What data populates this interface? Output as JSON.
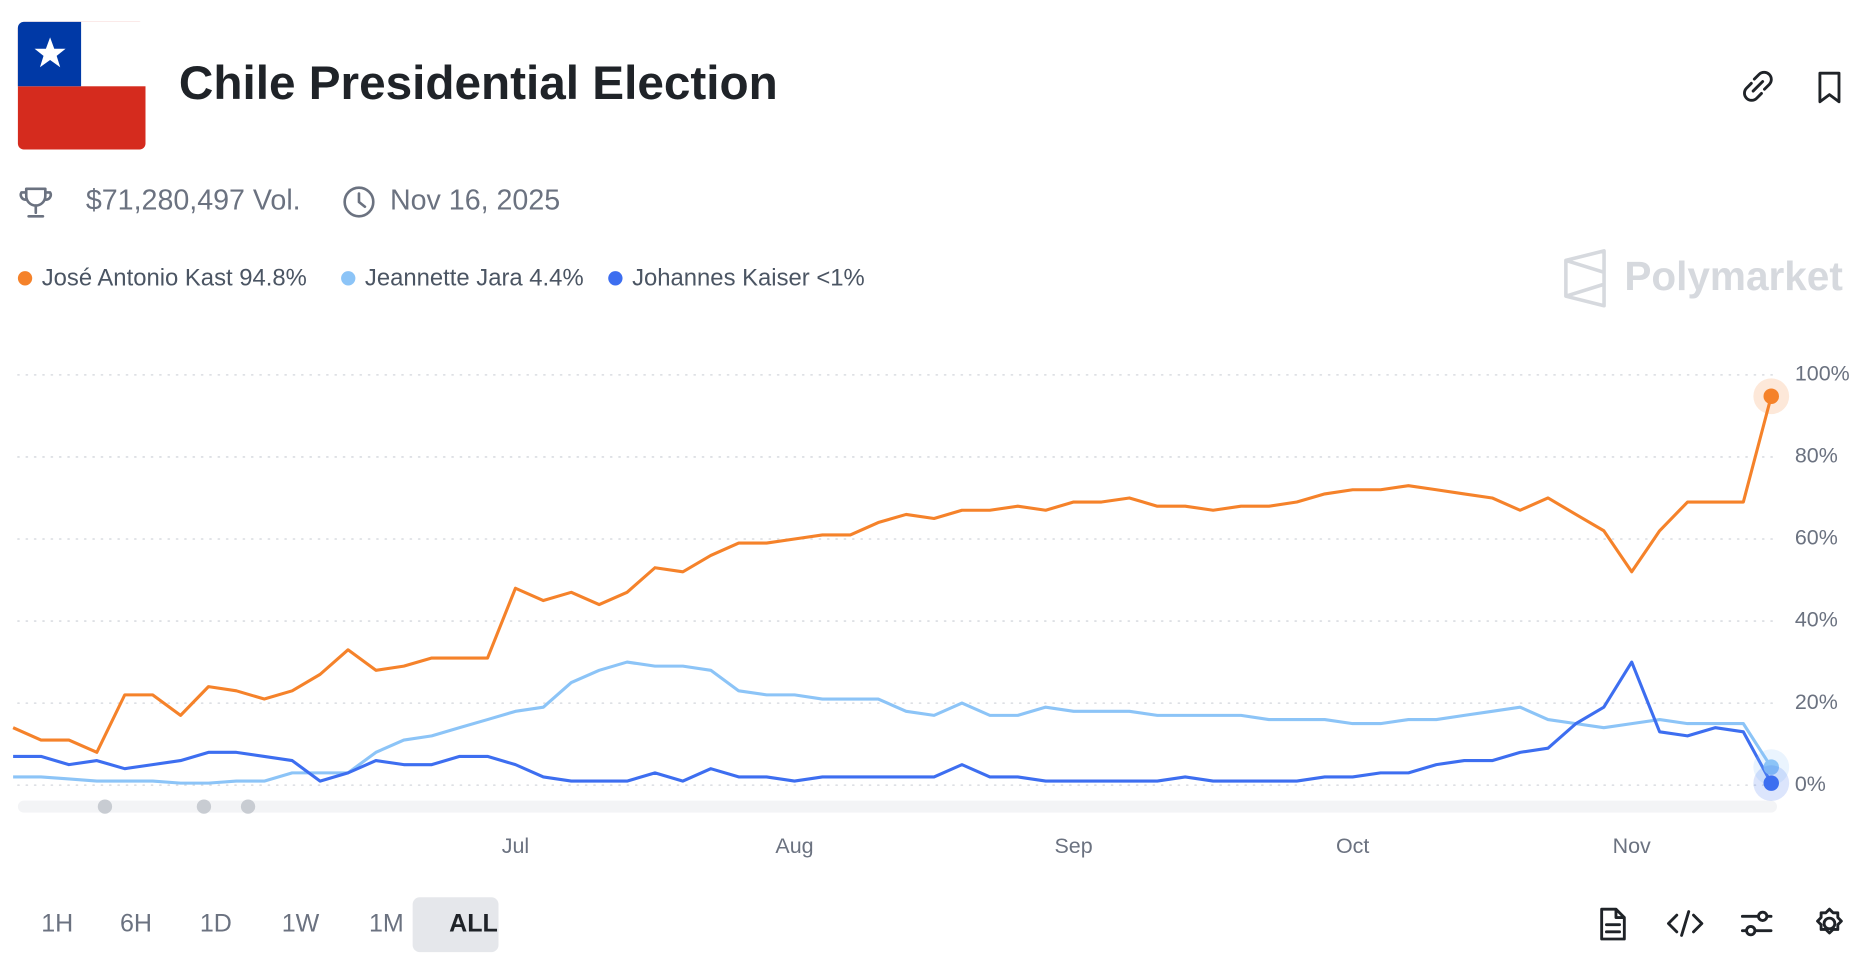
{
  "chart_data": {
    "type": "line",
    "title": "Chile Presidential Election",
    "volume": "$71,280,497 Vol.",
    "date": "Nov 16, 2025",
    "brand": "Polymarket",
    "ranges": [
      "1H",
      "6H",
      "1D",
      "1W",
      "1M",
      "ALL"
    ],
    "selected_range": 5,
    "categories": [
      null,
      null,
      null,
      null,
      null,
      null,
      null,
      null,
      null,
      null,
      null,
      null,
      null,
      null,
      null,
      null,
      null,
      null,
      "Jul",
      null,
      null,
      null,
      null,
      null,
      null,
      null,
      null,
      null,
      "Aug",
      null,
      null,
      null,
      null,
      null,
      null,
      null,
      null,
      null,
      "Sep",
      null,
      null,
      null,
      null,
      null,
      null,
      null,
      null,
      null,
      "Oct",
      null,
      null,
      null,
      null,
      null,
      null,
      null,
      null,
      null,
      "Nov",
      null,
      null,
      null,
      null,
      null
    ],
    "series": [
      {
        "name": "José Antonio Kast",
        "current_label": "94.8%",
        "color": "#f5822a",
        "values": [
          14,
          11,
          11,
          8,
          22,
          22,
          17,
          24,
          23,
          21,
          23,
          27,
          33,
          28,
          29,
          31,
          31,
          31,
          48,
          45,
          47,
          44,
          47,
          53,
          52,
          56,
          59,
          59,
          60,
          61,
          61,
          64,
          66,
          65,
          67,
          67,
          68,
          67,
          69,
          69,
          70,
          68,
          68,
          67,
          68,
          68,
          69,
          71,
          72,
          72,
          73,
          72,
          71,
          70,
          67,
          70,
          66,
          62,
          52,
          62,
          69,
          69,
          69,
          94.8
        ]
      },
      {
        "name": "Jeannette Jara",
        "current_label": "4.4%",
        "color": "#8cc4f7",
        "values": [
          2,
          2,
          1.5,
          1,
          1,
          1,
          0.5,
          0.5,
          1,
          1,
          3,
          3,
          3,
          8,
          11,
          12,
          14,
          16,
          18,
          19,
          25,
          28,
          30,
          29,
          29,
          28,
          23,
          22,
          22,
          21,
          21,
          21,
          18,
          17,
          20,
          17,
          17,
          19,
          18,
          18,
          18,
          17,
          17,
          17,
          17,
          16,
          16,
          16,
          15,
          15,
          16,
          16,
          17,
          18,
          19,
          16,
          15,
          14,
          15,
          16,
          15,
          15,
          15,
          4.4
        ]
      },
      {
        "name": "Johannes Kaiser",
        "current_label": "<1%",
        "color": "#3d6ef0",
        "values": [
          7,
          7,
          5,
          6,
          4,
          5,
          6,
          8,
          8,
          7,
          6,
          1,
          3,
          6,
          5,
          5,
          7,
          7,
          5,
          2,
          1,
          1,
          1,
          3,
          1,
          4,
          2,
          2,
          1,
          2,
          2,
          2,
          2,
          2,
          5,
          2,
          2,
          1,
          1,
          1,
          1,
          1,
          2,
          1,
          1,
          1,
          1,
          2,
          2,
          3,
          3,
          5,
          6,
          6,
          8,
          9,
          15,
          19,
          30,
          13,
          12,
          14,
          13,
          0.5
        ]
      }
    ],
    "ylim": [
      0,
      100
    ],
    "yticks": [
      {
        "value": 0,
        "label": "0%"
      },
      {
        "value": 20,
        "label": "20%"
      },
      {
        "value": 40,
        "label": "40%"
      },
      {
        "value": 60,
        "label": "60%"
      },
      {
        "value": 80,
        "label": "80%"
      },
      {
        "value": 100,
        "label": "100%"
      }
    ],
    "grid": true
  }
}
